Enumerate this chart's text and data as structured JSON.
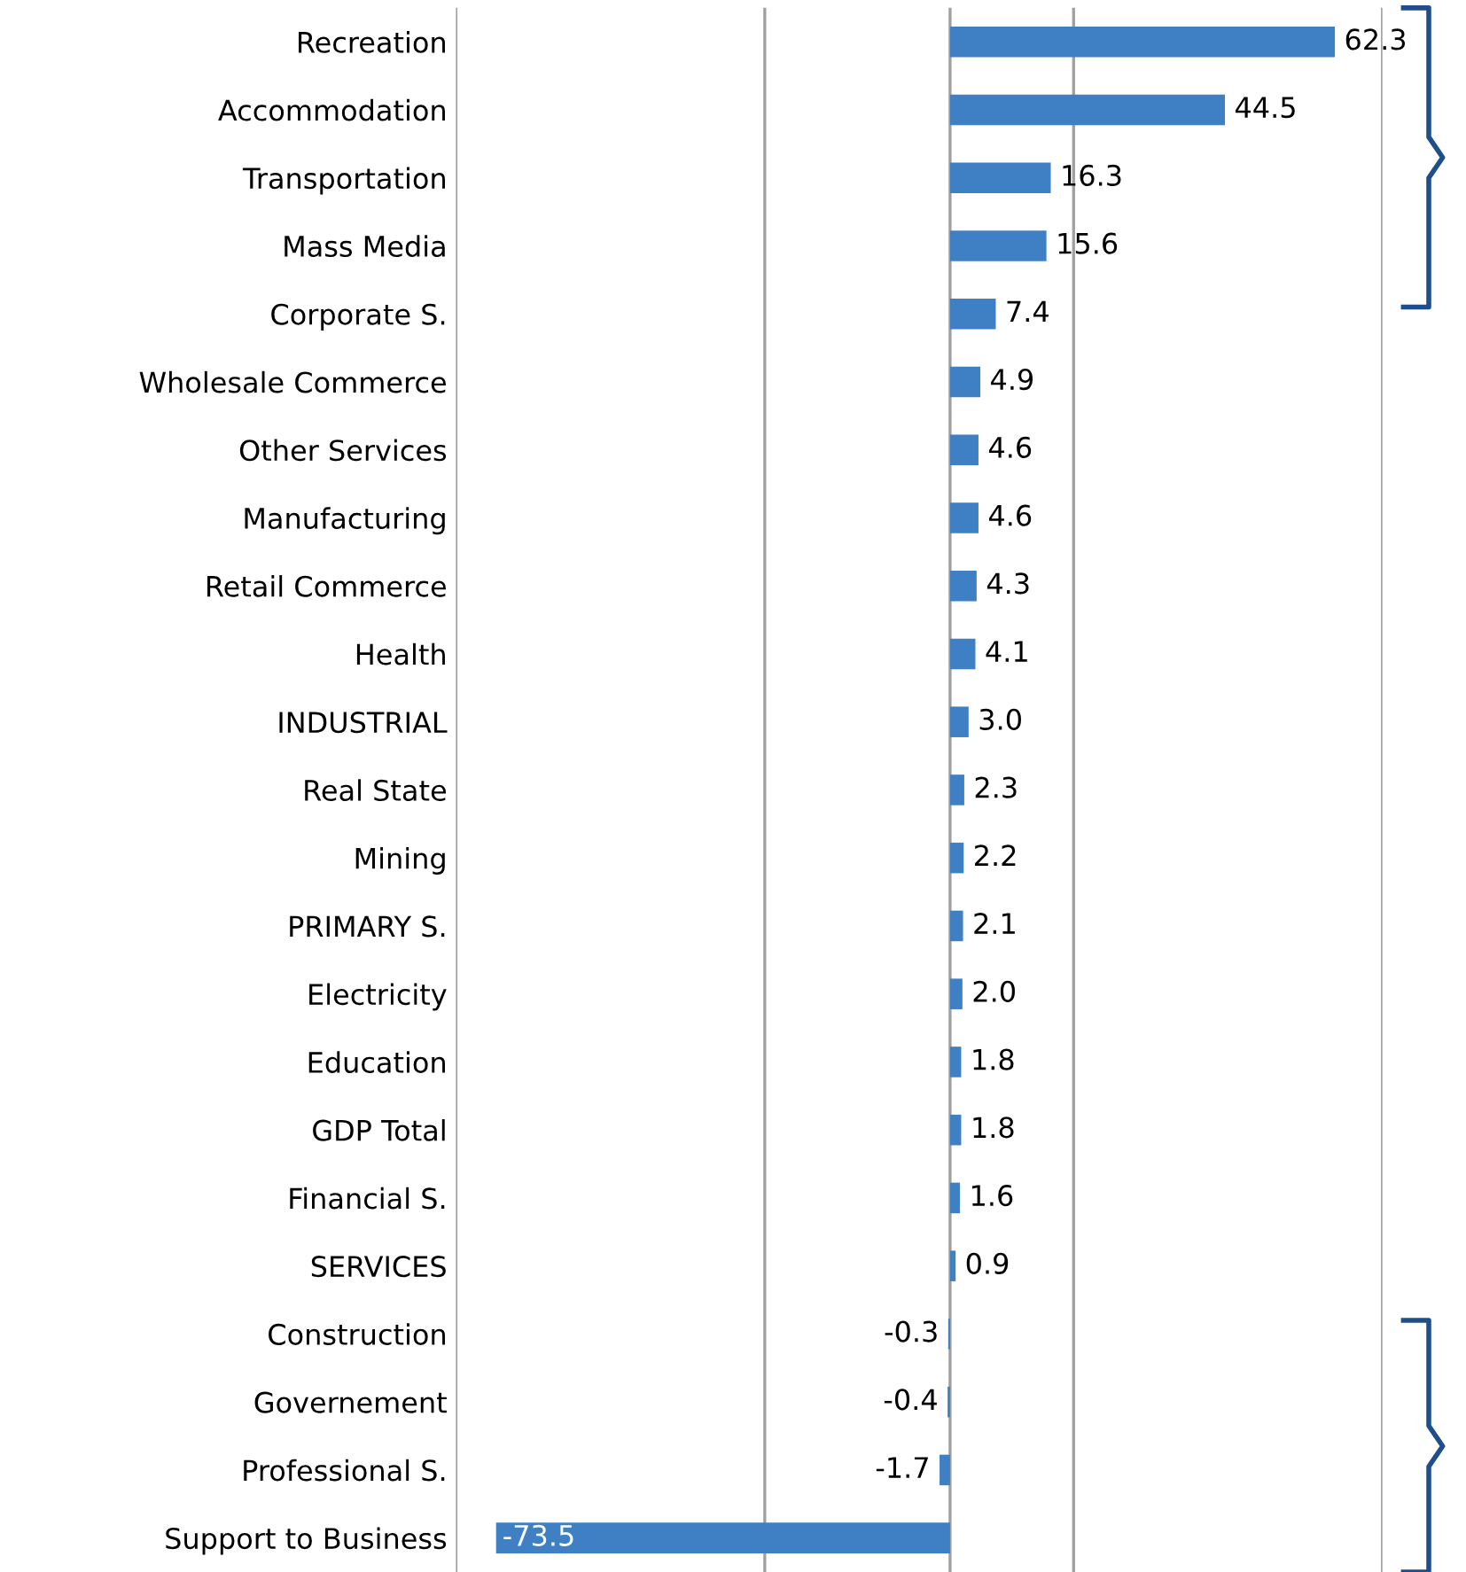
{
  "chart_data": {
    "type": "bar",
    "orientation": "horizontal",
    "categories": [
      "Recreation",
      "Accommodation",
      "Transportation",
      "Mass Media",
      "Corporate S.",
      "Wholesale Commerce",
      "Other Services",
      "Manufacturing",
      "Retail Commerce",
      "Health",
      "INDUSTRIAL",
      "Real State",
      "Mining",
      "PRIMARY S.",
      "Electricity",
      "Education",
      "GDP Total",
      "Financial S.",
      "SERVICES",
      "Construction",
      "Governement",
      "Professional S.",
      "Support to Business"
    ],
    "values": [
      62.3,
      44.5,
      16.3,
      15.6,
      7.4,
      4.9,
      4.6,
      4.6,
      4.3,
      4.1,
      3.0,
      2.3,
      2.2,
      2.1,
      2.0,
      1.8,
      1.8,
      1.6,
      0.9,
      -0.3,
      -0.4,
      -1.7,
      -73.5
    ],
    "color": "#3f7fc4",
    "xlim": [
      -80,
      70
    ],
    "xticks": [
      {
        "value": -80,
        "label": null
      },
      {
        "value": -30,
        "label": null
      },
      {
        "value": 20,
        "label": null
      },
      {
        "value": 70,
        "label": null
      }
    ],
    "value_labels": [
      "62.3",
      "44.5",
      "16.3",
      "15.6",
      "7.4",
      "4.9",
      "4.6",
      "4.6",
      "4.3",
      "4.1",
      "3.0",
      "2.3",
      "2.2",
      "2.1",
      "2.0",
      "1.8",
      "1.8",
      "1.6",
      "0.9",
      "-0.3",
      "-0.4",
      "-1.7",
      "-73.5"
    ],
    "grid": "x",
    "tick_labels": "y",
    "legend": false
  }
}
